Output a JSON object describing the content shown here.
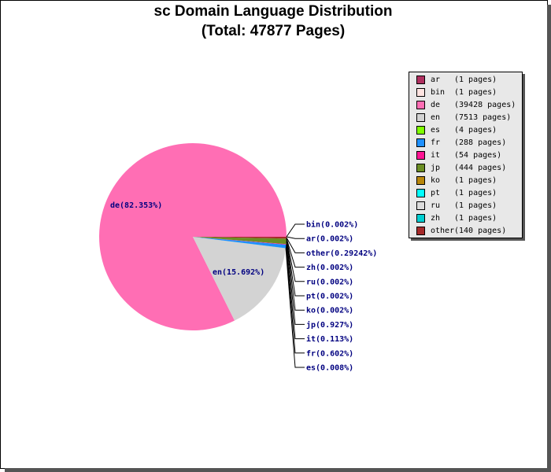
{
  "title_line1": "sc Domain Language Distribution",
  "title_line2": "(Total: 47877 Pages)",
  "chart_data": {
    "type": "pie",
    "title": "sc Domain Language Distribution (Total: 47877 Pages)",
    "total_pages": 47877,
    "slices": [
      {
        "code": "de",
        "pages": 39428,
        "label": "de(82.353%)",
        "color": "#ff6eb4"
      },
      {
        "code": "en",
        "pages": 7513,
        "label": "en(15.692%)",
        "color": "#d3d3d3"
      },
      {
        "code": "es",
        "pages": 4,
        "label": "es(0.008%)",
        "color": "#7fff00"
      },
      {
        "code": "fr",
        "pages": 288,
        "label": "fr(0.602%)",
        "color": "#1e90ff"
      },
      {
        "code": "it",
        "pages": 54,
        "label": "it(0.113%)",
        "color": "#ff1493"
      },
      {
        "code": "jp",
        "pages": 444,
        "label": "jp(0.927%)",
        "color": "#6b8e23"
      },
      {
        "code": "ko",
        "pages": 1,
        "label": "ko(0.002%)",
        "color": "#b8860b"
      },
      {
        "code": "pt",
        "pages": 1,
        "label": "pt(0.002%)",
        "color": "#00ffff"
      },
      {
        "code": "ru",
        "pages": 1,
        "label": "ru(0.002%)",
        "color": "#dcdcdc"
      },
      {
        "code": "zh",
        "pages": 1,
        "label": "zh(0.002%)",
        "color": "#00ced1"
      },
      {
        "code": "other",
        "pages": 140,
        "label": "other(0.29242%)",
        "color": "#a52a2a"
      },
      {
        "code": "ar",
        "pages": 1,
        "label": "ar(0.002%)",
        "color": "#b03060"
      },
      {
        "code": "bin",
        "pages": 1,
        "label": "bin(0.002%)",
        "color": "#ffe4e1"
      }
    ],
    "legend": [
      {
        "code": "ar",
        "text": "(1 pages)",
        "color": "#b03060"
      },
      {
        "code": "bin",
        "text": "(1 pages)",
        "color": "#ffe4e1"
      },
      {
        "code": "de",
        "text": "(39428 pages)",
        "color": "#ff6eb4"
      },
      {
        "code": "en",
        "text": "(7513 pages)",
        "color": "#d3d3d3"
      },
      {
        "code": "es",
        "text": "(4 pages)",
        "color": "#7fff00"
      },
      {
        "code": "fr",
        "text": "(288 pages)",
        "color": "#1e90ff"
      },
      {
        "code": "it",
        "text": "(54 pages)",
        "color": "#ff1493"
      },
      {
        "code": "jp",
        "text": "(444 pages)",
        "color": "#6b8e23"
      },
      {
        "code": "ko",
        "text": "(1 pages)",
        "color": "#b8860b"
      },
      {
        "code": "pt",
        "text": "(1 pages)",
        "color": "#00ffff"
      },
      {
        "code": "ru",
        "text": "(1 pages)",
        "color": "#dcdcdc"
      },
      {
        "code": "zh",
        "text": "(1 pages)",
        "color": "#00ced1"
      },
      {
        "code": "other",
        "text": "(140 pages)",
        "color": "#a52a2a"
      }
    ],
    "callout_order": [
      "bin",
      "ar",
      "other",
      "zh",
      "ru",
      "pt",
      "ko",
      "jp",
      "it",
      "fr",
      "es"
    ],
    "legend_placement": "top-right"
  }
}
